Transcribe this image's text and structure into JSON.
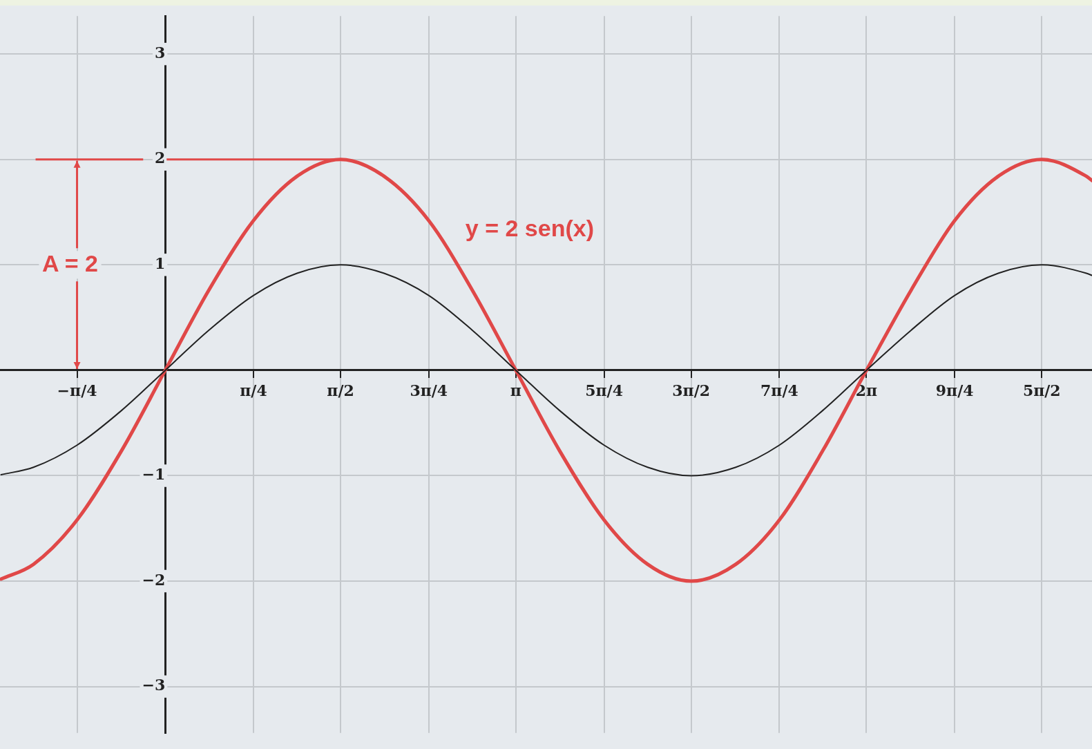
{
  "chart_data": {
    "type": "line",
    "x": [
      -1.47,
      -1.18,
      -0.79,
      -0.39,
      0,
      0.39,
      0.79,
      1.18,
      1.57,
      1.96,
      2.36,
      2.75,
      3.14,
      3.53,
      3.93,
      4.32,
      4.71,
      5.11,
      5.5,
      5.89,
      6.28,
      6.68,
      7.07,
      7.46,
      7.85,
      8.25,
      8.3
    ],
    "series": [
      {
        "color": "#222222",
        "values": [
          -0.99,
          -0.92,
          -0.71,
          -0.38,
          0,
          0.38,
          0.71,
          0.92,
          1,
          0.92,
          0.71,
          0.38,
          0,
          -0.38,
          -0.71,
          -0.92,
          -1,
          -0.92,
          -0.71,
          -0.38,
          0,
          0.38,
          0.71,
          0.92,
          1,
          0.92,
          0.9
        ]
      },
      {
        "name": "y = 2 sen(x)",
        "color": "#e04848",
        "values": [
          -1.98,
          -1.84,
          -1.42,
          -0.76,
          0,
          0.76,
          1.42,
          1.84,
          2,
          1.84,
          1.42,
          0.76,
          0,
          -0.76,
          -1.42,
          -1.84,
          -2,
          -1.84,
          -1.42,
          -0.76,
          0,
          0.76,
          1.42,
          1.84,
          2,
          1.84,
          1.8
        ]
      }
    ],
    "xlim": [
      -1.48,
      8.3
    ],
    "xticks": [
      {
        "value": -0.79,
        "label": "−π/4"
      },
      {
        "value": 0.79,
        "label": "π/4"
      },
      {
        "value": 1.57,
        "label": "π/2"
      },
      {
        "value": 2.36,
        "label": "3π/4"
      },
      {
        "value": 3.14,
        "label": "π"
      },
      {
        "value": 3.93,
        "label": "5π/4"
      },
      {
        "value": 4.71,
        "label": "3π/2"
      },
      {
        "value": 5.5,
        "label": "7π/4"
      },
      {
        "value": 6.28,
        "label": "2π"
      },
      {
        "value": 7.07,
        "label": "9π/4"
      },
      {
        "value": 7.85,
        "label": "5π/2"
      }
    ],
    "ylim": [
      -3.44,
      3.36
    ],
    "yticks": [
      {
        "value": -3,
        "label": "−3"
      },
      {
        "value": -2,
        "label": "−2"
      },
      {
        "value": -1,
        "label": "−1"
      },
      1,
      2,
      3
    ],
    "annotations": [
      "A = 2"
    ],
    "grid": true,
    "legend": false,
    "marker": "none",
    "line_style": "solid"
  }
}
